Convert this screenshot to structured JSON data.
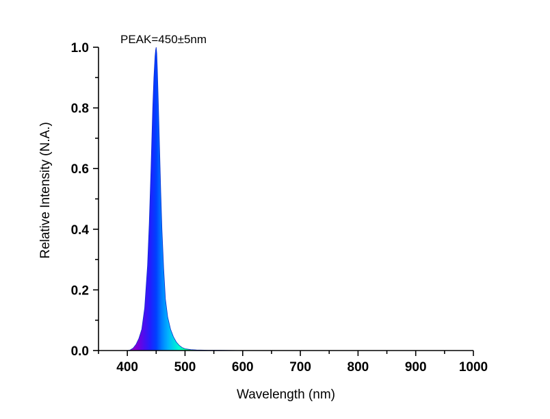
{
  "chart_data": {
    "type": "area",
    "title": "",
    "xlabel": "Wavelength (nm)",
    "ylabel": "Relative Intensity (N.A.)",
    "annotation": "PEAK=450±5nm",
    "xlim": [
      350,
      1000
    ],
    "ylim": [
      0,
      1.0
    ],
    "x_ticks": [
      400,
      500,
      600,
      700,
      800,
      900,
      1000
    ],
    "x_tick_labels": [
      "400",
      "500",
      "600",
      "700",
      "800",
      "900",
      "1000"
    ],
    "y_ticks": [
      0,
      0.2,
      0.4,
      0.6,
      0.8,
      1.0
    ],
    "y_tick_labels": [
      "0.0",
      "0.2",
      "0.4",
      "0.6",
      "0.8",
      "1.0"
    ],
    "grid": false,
    "legend": "none",
    "fill": "wavelength-colored spectrum",
    "series": [
      {
        "x": [
          400,
          405,
          410,
          415,
          420,
          425,
          430,
          435,
          438,
          441,
          444,
          446,
          448,
          449,
          450,
          451,
          452,
          454,
          456,
          458,
          460,
          463,
          466,
          470,
          475,
          480,
          485,
          490,
          495,
          500,
          510,
          520,
          540,
          560,
          600,
          650,
          700,
          750,
          800,
          850,
          900,
          950,
          1000
        ],
        "y": [
          0.0,
          0.002,
          0.008,
          0.02,
          0.04,
          0.07,
          0.14,
          0.28,
          0.42,
          0.6,
          0.8,
          0.9,
          0.97,
          0.99,
          1.0,
          0.98,
          0.93,
          0.8,
          0.66,
          0.52,
          0.4,
          0.27,
          0.17,
          0.11,
          0.07,
          0.045,
          0.028,
          0.017,
          0.01,
          0.006,
          0.003,
          0.002,
          0.001,
          0.001,
          0.0,
          0.0,
          0.0,
          0.0,
          0.0,
          0.0,
          0.0,
          0.0,
          0.0
        ]
      }
    ]
  }
}
